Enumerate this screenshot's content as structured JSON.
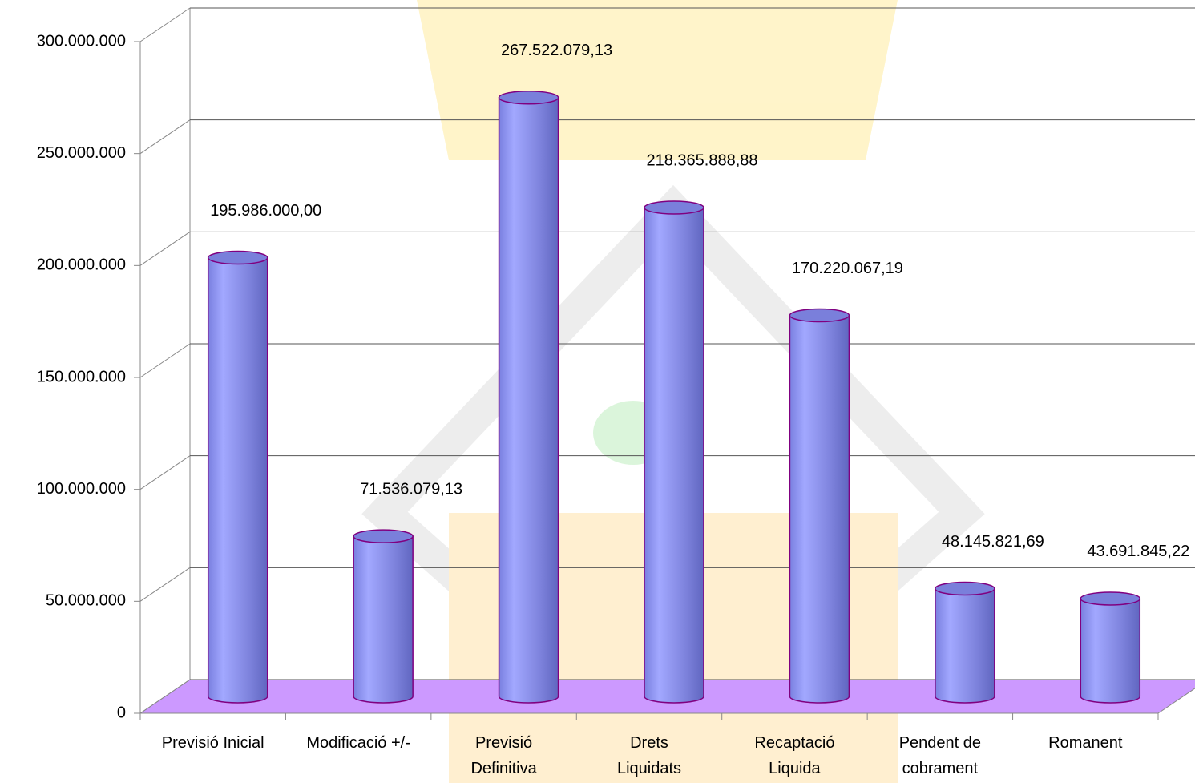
{
  "chart_data": {
    "type": "bar3d",
    "categories": [
      "Previsió Inicial",
      "Modificació +/-",
      "Previsió\nDefinitiva",
      "Drets\nLiquidats",
      "Recaptació\nLiquida",
      "Pendent de\ncobrament",
      "Romanent"
    ],
    "values": [
      195986000.0,
      71536079.13,
      267522079.13,
      218365888.88,
      170220067.19,
      48145821.69,
      43691845.22
    ],
    "value_labels": [
      "195.986.000,00",
      "71.536.079,13",
      "267.522.079,13",
      "218.365.888,88",
      "170.220.067,19",
      "48.145.821,69",
      "43.691.845,22"
    ],
    "color": "#8f95ee",
    "floor_color": "#cc99ff",
    "ylim": [
      0,
      300000000
    ],
    "yticks": [
      0,
      {
        "value": 50000000,
        "label": "50.000.000"
      },
      {
        "value": 100000000,
        "label": "100.000.000"
      },
      {
        "value": 150000000,
        "label": "150.000.000"
      },
      {
        "value": 200000000,
        "label": "200.000.000"
      },
      {
        "value": 250000000,
        "label": "250.000.000"
      },
      {
        "value": 300000000,
        "label": "300.000.000"
      }
    ],
    "grid": true
  }
}
